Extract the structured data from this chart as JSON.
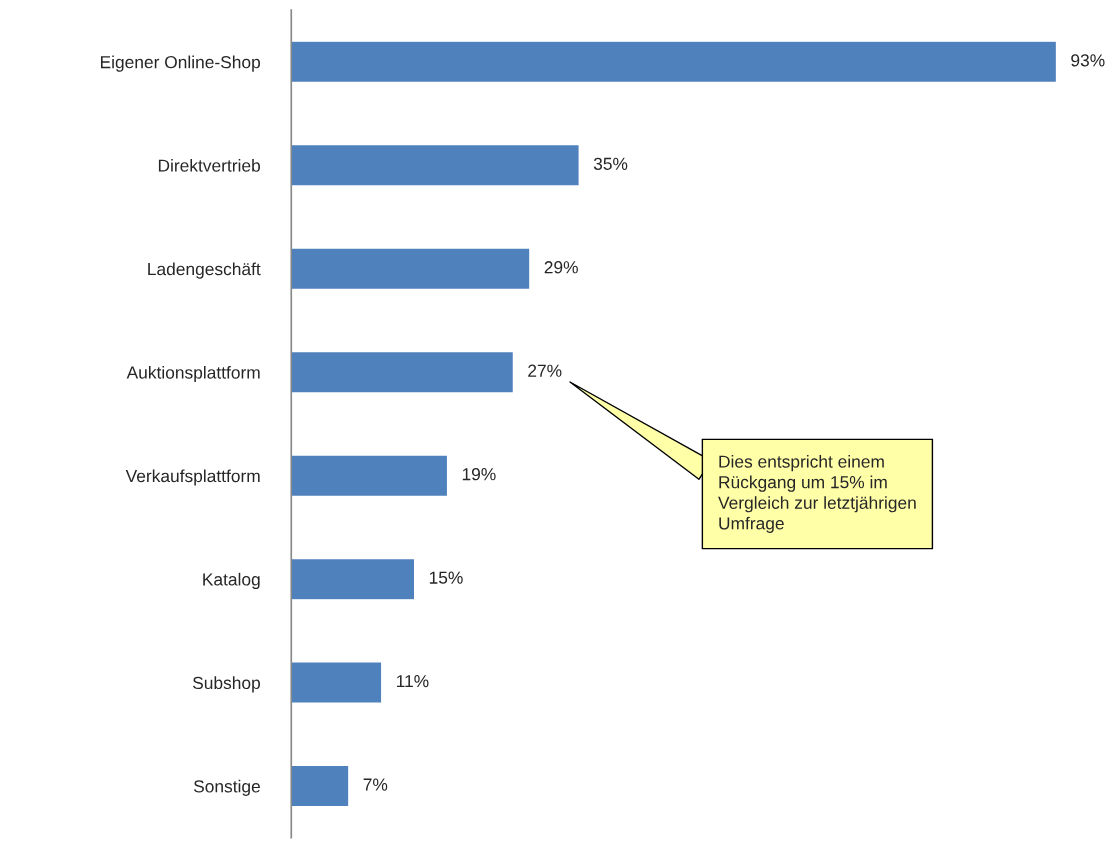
{
  "chart_data": {
    "type": "bar",
    "orientation": "horizontal",
    "categories": [
      "Eigener Online-Shop",
      "Direktvertrieb",
      "Ladengeschäft",
      "Auktionsplattform",
      "Verkaufsplattform",
      "Katalog",
      "Subshop",
      "Sonstige"
    ],
    "values": [
      93,
      35,
      29,
      27,
      19,
      15,
      11,
      7
    ],
    "value_labels": [
      "93%",
      "35%",
      "29%",
      "27%",
      "19%",
      "15%",
      "11%",
      "7%"
    ],
    "color": "#4f81bd",
    "annotations": [
      "Dies entspricht einem\nRückgang um 15% im\nVergleich zur letztjährigen\nUmfrage"
    ]
  }
}
